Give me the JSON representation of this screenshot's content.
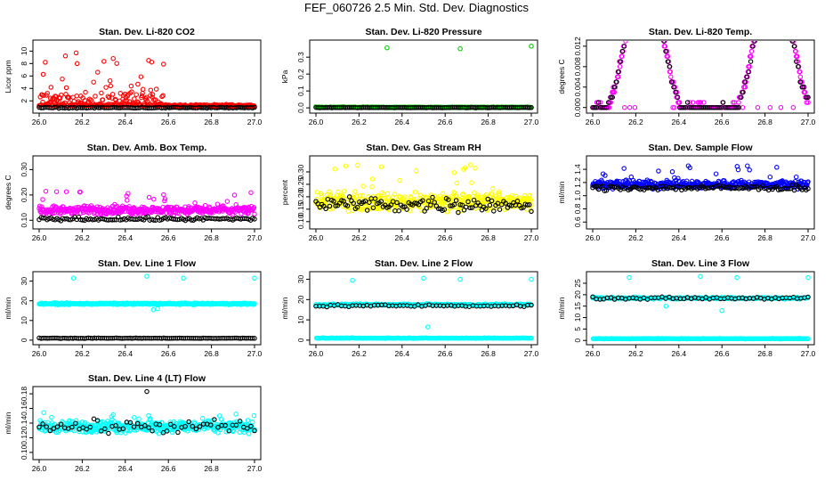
{
  "title": "FEF_060726  2.5 Min. Std. Dev. Diagnostics",
  "chart_data": [
    {
      "type": "scatter",
      "title": "Stan. Dev. Li-820 CO2",
      "ylabel": "Licor ppm",
      "xticks": [
        "26.0",
        "26.2",
        "26.4",
        "26.6",
        "26.8",
        "27.0"
      ],
      "yticks": [
        "2",
        "4",
        "6",
        "8",
        "10"
      ],
      "xlim": [
        26.0,
        27.0
      ],
      "ylim": [
        0.6,
        11.2
      ],
      "series": [
        {
          "name": "main",
          "color": "#ff0000",
          "profile": "co2"
        },
        {
          "name": "ref",
          "color": "#000000",
          "profile": "flat",
          "level": 0.9,
          "spread": 0.12
        }
      ]
    },
    {
      "type": "scatter",
      "title": "Stan. Dev. Li-820 Pressure",
      "ylabel": "kPa",
      "xticks": [
        "26.0",
        "26.2",
        "26.4",
        "26.6",
        "26.8",
        "27.0"
      ],
      "yticks": [
        "0.0",
        "0.1",
        "0.2",
        "0.3"
      ],
      "xlim": [
        26.0,
        27.0
      ],
      "ylim": [
        -0.01,
        0.38
      ],
      "series": [
        {
          "name": "main",
          "color": "#00cc00",
          "profile": "flat",
          "level": 0.003,
          "spread": 0.004,
          "outliers": [
            [
              26.33,
              0.355
            ],
            [
              26.67,
              0.35
            ],
            [
              27.0,
              0.365
            ]
          ]
        },
        {
          "name": "ref",
          "color": "#000000",
          "profile": "flat",
          "level": 0.002,
          "spread": 0.002
        }
      ]
    },
    {
      "type": "scatter",
      "title": "Stan. Dev. Li-820 Temp.",
      "ylabel": "degrees C",
      "xticks": [
        "26.0",
        "26.2",
        "26.4",
        "26.6",
        "26.8",
        "27.0"
      ],
      "yticks": [
        "0.000",
        "0.004",
        "0.008",
        "0.012"
      ],
      "xlim": [
        26.0,
        27.0
      ],
      "ylim": [
        -0.0004,
        0.0125
      ],
      "series": [
        {
          "name": "main",
          "color": "#ff00ff",
          "profile": "temp"
        },
        {
          "name": "ref",
          "color": "#000000",
          "profile": "tempref"
        }
      ]
    },
    {
      "type": "scatter",
      "title": "Stan. Dev. Amb. Box Temp.",
      "ylabel": "degrees C",
      "xticks": [
        "26.0",
        "26.2",
        "26.4",
        "26.6",
        "26.8",
        "27.0"
      ],
      "yticks": [
        "0.10",
        "0.20",
        "0.30"
      ],
      "xlim": [
        26.0,
        27.0
      ],
      "ylim": [
        0.08,
        0.34
      ],
      "series": [
        {
          "name": "main",
          "color": "#ff00ff",
          "profile": "flat",
          "level": 0.14,
          "spread": 0.025,
          "tail": 0.08
        },
        {
          "name": "ref",
          "color": "#000000",
          "profile": "flat",
          "level": 0.105,
          "spread": 0.01
        }
      ]
    },
    {
      "type": "scatter",
      "title": "Stan. Dev. Gas Stream RH",
      "ylabel": "percent",
      "xticks": [
        "26.0",
        "26.2",
        "26.4",
        "26.6",
        "26.8",
        "27.0"
      ],
      "yticks": [
        "0.10",
        "0.15",
        "0.20",
        "0.25",
        "0.30"
      ],
      "xlim": [
        26.0,
        27.0
      ],
      "ylim": [
        0.085,
        0.35
      ],
      "series": [
        {
          "name": "main",
          "color": "#ffff00",
          "profile": "flat",
          "level": 0.18,
          "spread": 0.05,
          "tail": 0.15
        },
        {
          "name": "ref",
          "color": "#000000",
          "profile": "flat",
          "level": 0.17,
          "spread": 0.045
        }
      ]
    },
    {
      "type": "scatter",
      "title": "Stan. Dev. Sample Flow",
      "ylabel": "ml/min",
      "xticks": [
        "26.0",
        "26.2",
        "26.4",
        "26.6",
        "26.8",
        "27.0"
      ],
      "yticks": [
        "0.6",
        "0.8",
        "1.0",
        "1.2",
        "1.4"
      ],
      "xlim": [
        26.0,
        27.0
      ],
      "ylim": [
        0.55,
        1.55
      ],
      "series": [
        {
          "name": "main",
          "color": "#0000ff",
          "profile": "flat",
          "level": 1.17,
          "spread": 0.09,
          "tail": 0.3
        },
        {
          "name": "ref",
          "color": "#000000",
          "profile": "flat",
          "level": 1.12,
          "spread": 0.06
        }
      ]
    },
    {
      "type": "scatter",
      "title": "Stan. Dev. Line 1 Flow",
      "ylabel": "ml/min",
      "xticks": [
        "26.0",
        "26.2",
        "26.4",
        "26.6",
        "26.8",
        "27.0"
      ],
      "yticks": [
        "0",
        "10",
        "20",
        "30"
      ],
      "xlim": [
        26.0,
        27.0
      ],
      "ylim": [
        -0.5,
        33
      ],
      "series": [
        {
          "name": "main",
          "color": "#00ffff",
          "profile": "flat",
          "level": 18.5,
          "spread": 0.6,
          "outliers": [
            [
              26.16,
              31.5
            ],
            [
              26.5,
              32.5
            ],
            [
              26.67,
              31.5
            ],
            [
              27.0,
              31.5
            ],
            [
              26.53,
              15.5
            ],
            [
              26.55,
              16.0
            ]
          ]
        },
        {
          "name": "ref",
          "color": "#000000",
          "profile": "flat",
          "level": 1.0,
          "spread": 0.2
        }
      ]
    },
    {
      "type": "scatter",
      "title": "Stan. Dev. Line 2 Flow",
      "ylabel": "ml/min",
      "xticks": [
        "26.0",
        "26.2",
        "26.4",
        "26.6",
        "26.8",
        "27.0"
      ],
      "yticks": [
        "0",
        "10",
        "20",
        "30"
      ],
      "xlim": [
        26.0,
        27.0
      ],
      "ylim": [
        -0.5,
        32
      ],
      "series": [
        {
          "name": "main",
          "color": "#00ffff",
          "profile": "dual",
          "level": 17.5,
          "level2": 1.0,
          "spread": 0.7,
          "outliers": [
            [
              26.17,
              29.5
            ],
            [
              26.5,
              30.5
            ],
            [
              26.67,
              30.0
            ],
            [
              27.0,
              30.0
            ],
            [
              26.52,
              6.5
            ]
          ]
        },
        {
          "name": "ref",
          "color": "#000000",
          "profile": "sparse",
          "level": 17.0,
          "spread": 0.8
        }
      ]
    },
    {
      "type": "scatter",
      "title": "Stan. Dev. Line 3 Flow",
      "ylabel": "ml/min",
      "xticks": [
        "26.0",
        "26.2",
        "26.4",
        "26.6",
        "26.8",
        "27.0"
      ],
      "yticks": [
        "0",
        "5",
        "10",
        "15",
        "20",
        "25"
      ],
      "xlim": [
        26.0,
        27.0
      ],
      "ylim": [
        -0.3,
        28.5
      ],
      "series": [
        {
          "name": "main",
          "color": "#00ffff",
          "profile": "dual",
          "level": 18.5,
          "level2": 0.8,
          "spread": 0.6,
          "outliers": [
            [
              26.17,
              27.5
            ],
            [
              26.5,
              28.0
            ],
            [
              26.67,
              27.5
            ],
            [
              27.0,
              27.5
            ],
            [
              26.6,
              13.0
            ],
            [
              26.34,
              15.0
            ]
          ]
        },
        {
          "name": "ref",
          "color": "#000000",
          "profile": "sparse",
          "level": 18.5,
          "spread": 0.7
        }
      ]
    },
    {
      "type": "scatter",
      "title": "Stan. Dev. Line 4 (LT) Flow",
      "ylabel": "ml/min",
      "xticks": [
        "26.0",
        "26.2",
        "26.4",
        "26.6",
        "26.8",
        "27.0"
      ],
      "yticks": [
        "0.10",
        "0.12",
        "0.14",
        "0.16",
        "0.18"
      ],
      "xlim": [
        26.0,
        27.0
      ],
      "ylim": [
        0.095,
        0.185
      ],
      "series": [
        {
          "name": "main",
          "color": "#00ffff",
          "profile": "flat",
          "level": 0.135,
          "spread": 0.012,
          "tail": 0.02
        },
        {
          "name": "ref",
          "color": "#000000",
          "profile": "sparse",
          "level": 0.135,
          "spread": 0.013,
          "outliers": [
            [
              26.5,
              0.183
            ]
          ]
        }
      ]
    }
  ]
}
